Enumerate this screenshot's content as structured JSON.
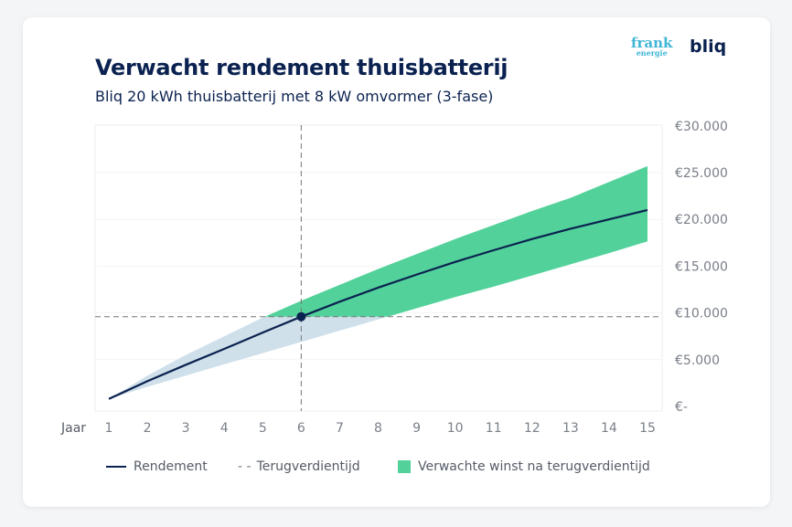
{
  "header": {
    "title": "Verwacht rendement thuisbatterij",
    "subtitle": "Bliq 20 kWh thuisbatterij met 8 kW omvormer (3-fase)",
    "logos": [
      "frank energie",
      "bliq"
    ]
  },
  "chart_data": {
    "type": "area",
    "xlabel": "Jaar",
    "x": [
      1,
      2,
      3,
      4,
      5,
      6,
      7,
      8,
      9,
      10,
      11,
      12,
      13,
      14,
      15
    ],
    "ylim": [
      0,
      30000
    ],
    "yticks": [
      0,
      5000,
      10000,
      15000,
      20000,
      25000,
      30000
    ],
    "ytick_labels": [
      "€-",
      "€5.000",
      "€10.000",
      "€15.000",
      "€20.000",
      "€25.000",
      "€30.000"
    ],
    "y_axis_position": "right",
    "grid": true,
    "legend_placement": "bottom",
    "series": [
      {
        "name": "Rendement",
        "type": "line",
        "values": [
          800,
          2700,
          4450,
          6150,
          7900,
          9600,
          11200,
          12700,
          14100,
          15450,
          16700,
          17900,
          19000,
          20000,
          21000
        ]
      },
      {
        "type": "band-upper",
        "values": [
          800,
          3300,
          5500,
          7500,
          9500,
          11300,
          13000,
          14700,
          16300,
          17900,
          19400,
          20900,
          22300,
          24000,
          25700
        ]
      },
      {
        "type": "band-lower",
        "values": [
          800,
          2100,
          3300,
          4500,
          5700,
          6900,
          8100,
          9300,
          10500,
          11700,
          12800,
          14000,
          15200,
          16400,
          17650
        ]
      }
    ],
    "payback": {
      "name": "Terugverdientijd",
      "year": 6,
      "value": 9600
    },
    "band_after_payback_name": "Verwachte winst na terugverdientijd",
    "colors": {
      "line": "#0b2250",
      "band_before": "#cfe0ea",
      "band_after": "#52d29a",
      "dash": "#777777"
    }
  },
  "legend": {
    "rendement": "Rendement",
    "terugverdientijd": "Terugverdientijd",
    "winst": "Verwachte winst na terugverdientijd",
    "dash_prefix": "- -"
  }
}
